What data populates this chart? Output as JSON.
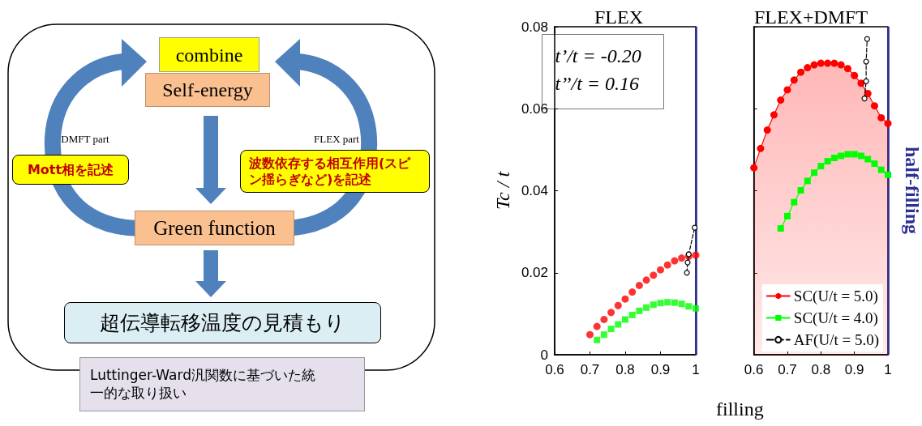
{
  "chart_data": [
    {
      "type": "other",
      "annotations": [
        "combine",
        "Self-energy",
        "DMFT part",
        "FLEX part",
        "Mott相を記述",
        "波数依存する相互作用(スピン揺らぎなど)を記述",
        "Green function",
        "超伝導転移温度の見積もり",
        "Luttinger-Ward汎関数に基づいた統一的な取り扱い"
      ]
    },
    {
      "type": "area",
      "title": "FLEX",
      "ylabel": "Tc / t",
      "xlim": [
        0.6,
        1.0
      ],
      "ylim": [
        0,
        0.08
      ],
      "xticks": [
        0.6,
        0.7,
        0.8,
        0.9,
        1
      ],
      "yticks": [
        0,
        0.02,
        0.04,
        0.06,
        0.08
      ],
      "grid": false,
      "legend": false,
      "annotations": [
        "t’/t = -0.20",
        "t’’/t = 0.16"
      ],
      "ref_lines": [
        {
          "axis": "x",
          "value": 1,
          "label": null,
          "color": "#2e3192"
        }
      ],
      "series": [
        {
          "type": "scatter",
          "color": "#ff0000",
          "marker": "circle",
          "x": [
            0.7,
            0.72,
            0.74,
            0.76,
            0.78,
            0.8,
            0.82,
            0.84,
            0.86,
            0.88,
            0.9,
            0.92,
            0.94,
            0.96,
            0.98,
            1.0
          ],
          "values": [
            0.0049,
            0.0069,
            0.0086,
            0.0103,
            0.012,
            0.0136,
            0.0153,
            0.0169,
            0.0182,
            0.0194,
            0.0207,
            0.0219,
            0.0229,
            0.0236,
            0.024,
            0.0243
          ]
        },
        {
          "type": "scatter",
          "color": "#00ff00",
          "marker": "square",
          "x": [
            0.72,
            0.74,
            0.76,
            0.78,
            0.8,
            0.82,
            0.84,
            0.86,
            0.88,
            0.9,
            0.92,
            0.94,
            0.96,
            0.98,
            1.0
          ],
          "values": [
            0.0036,
            0.0049,
            0.0063,
            0.0074,
            0.0086,
            0.0097,
            0.0107,
            0.0115,
            0.0122,
            0.0126,
            0.0128,
            0.0127,
            0.0124,
            0.0118,
            0.0113
          ]
        },
        {
          "type": "line",
          "color": "#000000",
          "marker": "circle",
          "line_style": "dashed",
          "x": [
            0.975,
            0.977,
            0.98,
            0.997
          ],
          "values": [
            0.02,
            0.0225,
            0.0245,
            0.031
          ]
        }
      ]
    },
    {
      "type": "area",
      "title": "FLEX+DMFT",
      "xlabel": "filling",
      "xlim": [
        0.6,
        1.0
      ],
      "ylim": [
        0,
        0.08
      ],
      "xticks": [
        0.6,
        0.7,
        0.8,
        0.9,
        1
      ],
      "yticks": [
        0,
        0.02,
        0.04,
        0.06,
        0.08
      ],
      "tick_labels": "x",
      "grid": false,
      "legend": "bottom right",
      "ref_lines": [
        {
          "axis": "x",
          "value": 1,
          "label": "half-filling",
          "color": "#2e3192"
        }
      ],
      "series": [
        {
          "name": "SC(U/t = 5.0)",
          "type": "area",
          "color": "#ff0000",
          "marker": "circle",
          "line_style": "solid",
          "x": [
            0.6,
            0.62,
            0.64,
            0.66,
            0.68,
            0.7,
            0.72,
            0.74,
            0.76,
            0.78,
            0.8,
            0.82,
            0.84,
            0.86,
            0.88,
            0.9,
            0.92,
            0.94,
            0.96,
            0.98,
            1.0
          ],
          "values": [
            0.0456,
            0.0503,
            0.0548,
            0.0585,
            0.0621,
            0.0646,
            0.067,
            0.0689,
            0.07,
            0.0707,
            0.0711,
            0.0711,
            0.0711,
            0.0707,
            0.0698,
            0.0681,
            0.0662,
            0.0637,
            0.0607,
            0.0578,
            0.0564
          ]
        },
        {
          "name": "SC(U/t = 4.0)",
          "type": "line",
          "color": "#00ff00",
          "marker": "square",
          "line_style": "solid",
          "x": [
            0.68,
            0.7,
            0.72,
            0.74,
            0.76,
            0.78,
            0.8,
            0.82,
            0.84,
            0.86,
            0.88,
            0.9,
            0.92,
            0.94,
            0.96,
            0.98,
            1.0
          ],
          "values": [
            0.0308,
            0.0338,
            0.0372,
            0.0401,
            0.0424,
            0.0444,
            0.046,
            0.0472,
            0.048,
            0.0485,
            0.0489,
            0.0489,
            0.0485,
            0.0477,
            0.0466,
            0.0451,
            0.0439
          ]
        },
        {
          "name": "AF(U/t = 5.0)",
          "type": "line",
          "color": "#000000",
          "marker": "circle",
          "line_style": "dashed",
          "x": [
            0.93,
            0.935,
            0.935,
            0.938
          ],
          "values": [
            0.0625,
            0.0667,
            0.0715,
            0.077
          ]
        }
      ]
    }
  ]
}
